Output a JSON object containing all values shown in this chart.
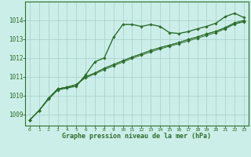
{
  "title": "Graphe pression niveau de la mer (hPa)",
  "background_color": "#cceee8",
  "grid_color": "#aad4ce",
  "line_color": "#2d6e2d",
  "xlim": [
    -0.5,
    23.5
  ],
  "ylim": [
    1008.4,
    1015.0
  ],
  "xticks": [
    0,
    1,
    2,
    3,
    4,
    5,
    6,
    7,
    8,
    9,
    10,
    11,
    12,
    13,
    14,
    15,
    16,
    17,
    18,
    19,
    20,
    21,
    22,
    23
  ],
  "yticks": [
    1009,
    1010,
    1011,
    1012,
    1013,
    1014
  ],
  "series": [
    [
      1008.7,
      1009.2,
      1009.8,
      1010.3,
      1010.4,
      1010.5,
      1011.1,
      1011.8,
      1012.0,
      1013.1,
      1013.78,
      1013.78,
      1013.68,
      1013.78,
      1013.68,
      1013.35,
      1013.3,
      1013.4,
      1013.55,
      1013.68,
      1013.85,
      1014.2,
      1014.38,
      1014.15
    ],
    [
      1008.7,
      1009.2,
      1009.85,
      1010.35,
      1010.45,
      1010.58,
      1011.0,
      1011.2,
      1011.45,
      1011.65,
      1011.85,
      1012.05,
      1012.22,
      1012.4,
      1012.55,
      1012.68,
      1012.82,
      1012.98,
      1013.12,
      1013.28,
      1013.42,
      1013.6,
      1013.82,
      1013.95
    ],
    [
      1008.7,
      1009.2,
      1009.85,
      1010.35,
      1010.45,
      1010.58,
      1011.0,
      1011.2,
      1011.45,
      1011.65,
      1011.85,
      1012.05,
      1012.22,
      1012.4,
      1012.55,
      1012.68,
      1012.82,
      1012.98,
      1013.12,
      1013.28,
      1013.42,
      1013.62,
      1013.88,
      1014.0
    ],
    [
      1008.7,
      1009.2,
      1009.85,
      1010.35,
      1010.45,
      1010.58,
      1010.95,
      1011.15,
      1011.38,
      1011.58,
      1011.78,
      1011.98,
      1012.15,
      1012.32,
      1012.48,
      1012.62,
      1012.75,
      1012.9,
      1013.05,
      1013.2,
      1013.35,
      1013.55,
      1013.8,
      1013.92
    ]
  ]
}
